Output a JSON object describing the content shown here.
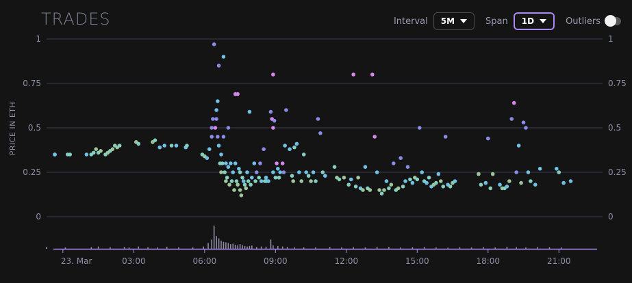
{
  "title": "TRADES",
  "controls": {
    "interval_label": "Interval",
    "interval_value": "5M",
    "span_label": "Span",
    "span_value": "1D",
    "outliers_label": "Outliers",
    "outliers_on": false
  },
  "colors": {
    "background": "#141414",
    "grid": "#3b3b52",
    "axis_text": "#8f91a6",
    "volume": "#8e8ba6",
    "active_accent": "#a88af0",
    "point_palette": [
      "#9ec59b",
      "#84cfc0",
      "#6fc2e6",
      "#8a8be6",
      "#d587ea"
    ]
  },
  "chart_data": {
    "type": "scatter",
    "ylabel": "PRICE IN ETH",
    "y_ticks": [
      "1",
      "0.75",
      "0.5",
      "0.25",
      "0"
    ],
    "y_tick_values": [
      1,
      0.75,
      0.5,
      0.25,
      0
    ],
    "ylim": [
      0,
      1
    ],
    "x_ticks": [
      "23. Mar",
      "03:00",
      "06:00",
      "09:00",
      "12:00",
      "15:00",
      "18:00",
      "21:00"
    ],
    "x_tick_hours": [
      0,
      3,
      6,
      9,
      12,
      15,
      18,
      21
    ],
    "xlim_hours": [
      -0.2,
      22.5
    ],
    "grid": true,
    "series": [
      {
        "points": [
          [
            -0.8,
            0.35,
            2
          ],
          [
            -0.7,
            0.35,
            2
          ],
          [
            -0.6,
            0.35,
            2
          ],
          [
            0.2,
            0.35,
            1
          ],
          [
            0.3,
            0.35,
            1
          ],
          [
            1.0,
            0.35,
            2
          ],
          [
            1.2,
            0.35,
            1
          ],
          [
            1.3,
            0.36,
            1
          ],
          [
            1.4,
            0.38,
            0
          ],
          [
            1.5,
            0.36,
            1
          ],
          [
            1.6,
            0.37,
            0
          ],
          [
            1.8,
            0.35,
            1
          ],
          [
            1.9,
            0.36,
            0
          ],
          [
            2.0,
            0.37,
            1
          ],
          [
            2.1,
            0.38,
            0
          ],
          [
            2.2,
            0.4,
            1
          ],
          [
            2.3,
            0.39,
            0
          ],
          [
            2.4,
            0.4,
            1
          ],
          [
            3.1,
            0.42,
            0
          ],
          [
            3.2,
            0.41,
            1
          ],
          [
            3.8,
            0.42,
            0
          ],
          [
            3.9,
            0.43,
            1
          ],
          [
            4.1,
            0.39,
            2
          ],
          [
            4.3,
            0.4,
            2
          ],
          [
            4.6,
            0.4,
            1
          ],
          [
            4.8,
            0.4,
            2
          ],
          [
            5.2,
            0.39,
            2
          ],
          [
            5.25,
            0.4,
            1
          ],
          [
            5.9,
            0.35,
            1
          ],
          [
            6.0,
            0.34,
            0
          ],
          [
            6.1,
            0.33,
            2
          ],
          [
            6.2,
            0.38,
            2
          ],
          [
            6.3,
            0.45,
            3
          ],
          [
            6.3,
            0.5,
            3
          ],
          [
            6.35,
            0.55,
            3
          ],
          [
            6.4,
            0.97,
            3
          ],
          [
            6.45,
            0.5,
            4
          ],
          [
            6.5,
            0.6,
            2
          ],
          [
            6.5,
            0.55,
            3
          ],
          [
            6.55,
            0.65,
            2
          ],
          [
            6.55,
            0.45,
            3
          ],
          [
            6.6,
            0.4,
            2
          ],
          [
            6.6,
            0.85,
            3
          ],
          [
            6.65,
            0.3,
            1
          ],
          [
            6.7,
            0.35,
            2
          ],
          [
            6.7,
            0.25,
            0
          ],
          [
            6.75,
            0.3,
            1
          ],
          [
            6.8,
            0.9,
            2
          ],
          [
            6.8,
            0.45,
            3
          ],
          [
            6.85,
            0.25,
            1
          ],
          [
            6.9,
            0.2,
            0
          ],
          [
            6.9,
            0.3,
            2
          ],
          [
            6.95,
            0.22,
            1
          ],
          [
            7.0,
            0.5,
            3
          ],
          [
            7.0,
            0.28,
            2
          ],
          [
            7.05,
            0.18,
            0
          ],
          [
            7.1,
            0.3,
            2
          ],
          [
            7.15,
            0.2,
            1
          ],
          [
            7.2,
            0.25,
            2
          ],
          [
            7.25,
            0.15,
            0
          ],
          [
            7.3,
            0.69,
            4
          ],
          [
            7.3,
            0.3,
            2
          ],
          [
            7.35,
            0.2,
            1
          ],
          [
            7.4,
            0.69,
            4
          ],
          [
            7.4,
            0.18,
            0
          ],
          [
            7.45,
            0.27,
            2
          ],
          [
            7.5,
            0.15,
            0
          ],
          [
            7.5,
            0.25,
            1
          ],
          [
            7.55,
            0.12,
            0
          ],
          [
            7.6,
            0.22,
            1
          ],
          [
            7.65,
            0.2,
            2
          ],
          [
            7.7,
            0.18,
            1
          ],
          [
            7.75,
            0.16,
            0
          ],
          [
            7.8,
            0.25,
            2
          ],
          [
            7.85,
            0.2,
            1
          ],
          [
            7.9,
            0.59,
            2
          ],
          [
            7.95,
            0.18,
            1
          ],
          [
            8.0,
            0.22,
            2
          ],
          [
            8.1,
            0.3,
            2
          ],
          [
            8.15,
            0.2,
            1
          ],
          [
            8.2,
            0.25,
            3
          ],
          [
            8.3,
            0.22,
            1
          ],
          [
            8.35,
            0.3,
            3
          ],
          [
            8.4,
            0.2,
            2
          ],
          [
            8.5,
            0.38,
            3
          ],
          [
            8.55,
            0.2,
            1
          ],
          [
            8.6,
            0.22,
            2
          ],
          [
            8.65,
            0.2,
            1
          ],
          [
            8.7,
            0.2,
            2
          ],
          [
            8.8,
            0.59,
            3
          ],
          [
            8.85,
            0.55,
            4
          ],
          [
            8.9,
            0.5,
            4
          ],
          [
            8.9,
            0.8,
            4
          ],
          [
            8.95,
            0.54,
            3
          ],
          [
            8.9,
            0.25,
            2
          ],
          [
            9.0,
            0.22,
            1
          ],
          [
            9.05,
            0.3,
            4
          ],
          [
            9.1,
            0.27,
            2
          ],
          [
            9.15,
            0.22,
            1
          ],
          [
            9.2,
            0.25,
            2
          ],
          [
            9.3,
            0.3,
            4
          ],
          [
            9.35,
            0.25,
            3
          ],
          [
            9.4,
            0.4,
            2
          ],
          [
            9.45,
            0.6,
            3
          ],
          [
            9.6,
            0.38,
            2
          ],
          [
            9.7,
            0.23,
            1
          ],
          [
            9.75,
            0.2,
            0
          ],
          [
            9.8,
            0.39,
            1
          ],
          [
            9.9,
            0.41,
            2
          ],
          [
            10.0,
            0.25,
            2
          ],
          [
            10.1,
            0.2,
            0
          ],
          [
            10.2,
            0.35,
            1
          ],
          [
            10.3,
            0.25,
            2
          ],
          [
            10.4,
            0.23,
            1
          ],
          [
            10.5,
            0.2,
            0
          ],
          [
            10.6,
            0.25,
            2
          ],
          [
            10.7,
            0.2,
            1
          ],
          [
            10.8,
            0.55,
            3
          ],
          [
            10.9,
            0.47,
            3
          ],
          [
            11.0,
            0.25,
            1
          ],
          [
            11.1,
            0.23,
            2
          ],
          [
            11.5,
            0.28,
            1
          ],
          [
            11.6,
            0.22,
            0
          ],
          [
            11.7,
            0.21,
            1
          ],
          [
            11.9,
            0.22,
            0
          ],
          [
            12.1,
            0.18,
            1
          ],
          [
            12.2,
            0.21,
            2
          ],
          [
            12.3,
            0.8,
            4
          ],
          [
            12.4,
            0.17,
            1
          ],
          [
            12.5,
            0.22,
            0
          ],
          [
            12.6,
            0.16,
            2
          ],
          [
            12.7,
            0.15,
            0
          ],
          [
            12.8,
            0.28,
            2
          ],
          [
            12.9,
            0.16,
            1
          ],
          [
            13.0,
            0.15,
            0
          ],
          [
            13.1,
            0.8,
            4
          ],
          [
            13.2,
            0.45,
            4
          ],
          [
            13.3,
            0.25,
            2
          ],
          [
            13.4,
            0.15,
            0
          ],
          [
            13.5,
            0.13,
            1
          ],
          [
            13.6,
            0.15,
            0
          ],
          [
            13.7,
            0.2,
            2
          ],
          [
            13.8,
            0.16,
            1
          ],
          [
            13.9,
            0.18,
            0
          ],
          [
            14.0,
            0.3,
            3
          ],
          [
            14.1,
            0.15,
            1
          ],
          [
            14.2,
            0.16,
            0
          ],
          [
            14.3,
            0.33,
            3
          ],
          [
            14.4,
            0.17,
            1
          ],
          [
            14.5,
            0.2,
            2
          ],
          [
            14.6,
            0.28,
            3
          ],
          [
            14.7,
            0.21,
            1
          ],
          [
            14.8,
            0.19,
            2
          ],
          [
            14.9,
            0.22,
            0
          ],
          [
            15.0,
            0.21,
            1
          ],
          [
            15.1,
            0.5,
            3
          ],
          [
            15.2,
            0.25,
            2
          ],
          [
            15.3,
            0.2,
            1
          ],
          [
            15.4,
            0.19,
            2
          ],
          [
            15.5,
            0.22,
            1
          ],
          [
            15.6,
            0.17,
            2
          ],
          [
            15.7,
            0.18,
            0
          ],
          [
            15.8,
            0.19,
            1
          ],
          [
            15.9,
            0.24,
            2
          ],
          [
            16.0,
            0.2,
            0
          ],
          [
            16.1,
            0.17,
            1
          ],
          [
            16.2,
            0.45,
            3
          ],
          [
            16.3,
            0.18,
            2
          ],
          [
            16.4,
            0.17,
            1
          ],
          [
            16.5,
            0.19,
            0
          ],
          [
            16.6,
            0.2,
            2
          ],
          [
            17.6,
            0.24,
            0
          ],
          [
            17.7,
            0.18,
            1
          ],
          [
            17.9,
            0.19,
            2
          ],
          [
            18.0,
            0.44,
            3
          ],
          [
            18.1,
            0.16,
            1
          ],
          [
            18.2,
            0.24,
            0
          ],
          [
            18.5,
            0.18,
            2
          ],
          [
            18.6,
            0.16,
            0
          ],
          [
            18.7,
            0.16,
            1
          ],
          [
            18.8,
            0.17,
            2
          ],
          [
            18.9,
            0.2,
            0
          ],
          [
            19.0,
            0.55,
            3
          ],
          [
            19.1,
            0.64,
            4
          ],
          [
            19.2,
            0.25,
            3
          ],
          [
            19.3,
            0.4,
            2
          ],
          [
            19.4,
            0.19,
            0
          ],
          [
            19.5,
            0.53,
            3
          ],
          [
            19.6,
            0.5,
            3
          ],
          [
            19.7,
            0.25,
            2
          ],
          [
            19.8,
            0.2,
            1
          ],
          [
            20.0,
            0.18,
            2
          ],
          [
            20.9,
            0.27,
            2
          ],
          [
            21.0,
            0.25,
            1
          ],
          [
            21.2,
            0.19,
            2
          ],
          [
            21.5,
            0.2,
            2
          ],
          [
            20.2,
            0.27,
            2
          ]
        ]
      }
    ],
    "volume_hours": [
      -0.7,
      0.1,
      1.2,
      1.5,
      2.0,
      2.6,
      2.8,
      3.2,
      3.6,
      4.0,
      4.4,
      4.9,
      5.5,
      5.95,
      6.15,
      6.3,
      6.4,
      6.5,
      6.6,
      6.7,
      6.8,
      6.9,
      7.0,
      7.1,
      7.2,
      7.3,
      7.4,
      7.5,
      7.6,
      7.7,
      7.8,
      7.9,
      8.0,
      8.2,
      8.4,
      8.6,
      8.8,
      8.9,
      9.1,
      9.3,
      9.5,
      9.8,
      10.2,
      10.7,
      11.3,
      11.8,
      12.3,
      12.8,
      13.3,
      13.8,
      14.3,
      14.8,
      15.3,
      15.8,
      16.3,
      16.8,
      17.3,
      17.8,
      18.3,
      18.8,
      19.2,
      19.6,
      20.1,
      20.6,
      21.1
    ],
    "volume_values": [
      0.08,
      0.06,
      0.07,
      0.1,
      0.07,
      0.08,
      0.06,
      0.1,
      0.07,
      0.06,
      0.09,
      0.07,
      0.06,
      0.1,
      0.25,
      0.4,
      1.0,
      0.55,
      0.45,
      0.35,
      0.3,
      0.28,
      0.25,
      0.2,
      0.22,
      0.18,
      0.15,
      0.2,
      0.16,
      0.12,
      0.1,
      0.12,
      0.14,
      0.08,
      0.1,
      0.09,
      0.4,
      0.15,
      0.12,
      0.1,
      0.08,
      0.07,
      0.06,
      0.07,
      0.08,
      0.06,
      0.07,
      0.06,
      0.09,
      0.08,
      0.06,
      0.07,
      0.08,
      0.06,
      0.05,
      0.07,
      0.06,
      0.08,
      0.06,
      0.09,
      0.07,
      0.06,
      0.08,
      0.07,
      0.06
    ]
  }
}
